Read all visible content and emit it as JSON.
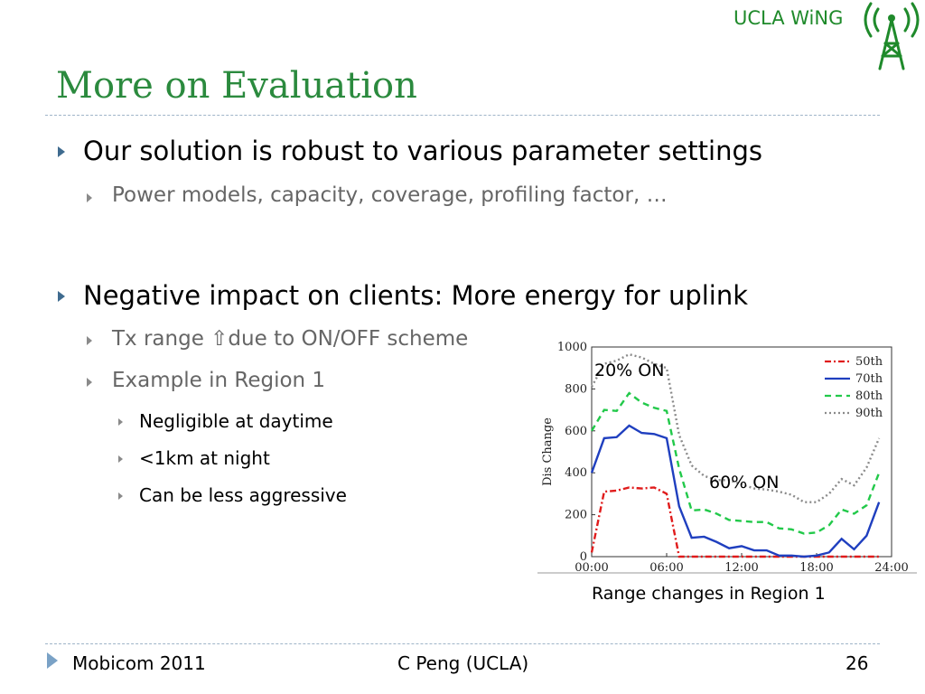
{
  "header": {
    "brand": "UCLA WiNG",
    "title": "More on Evaluation"
  },
  "bullets": {
    "b1": "Our solution is robust to various parameter settings",
    "b1_1": "Power models, capacity, coverage, profiling factor,  …",
    "b2": "Negative impact on clients:  More energy for uplink",
    "b2_1": "Tx range ⇧due to ON/OFF scheme",
    "b2_2": "Example in Region 1",
    "b2_2_1": "Negligible at daytime",
    "b2_2_2": "<1km at night",
    "b2_2_3": "Can be less aggressive"
  },
  "chart_data": {
    "type": "line",
    "title": "",
    "xlabel": "",
    "ylabel": "Dis Change",
    "xlim": [
      0,
      24
    ],
    "ylim": [
      0,
      1000
    ],
    "x_ticks": [
      "00:00",
      "06:00",
      "12:00",
      "18:00",
      "24:00"
    ],
    "y_ticks": [
      "0",
      "200",
      "400",
      "600",
      "800",
      "1000"
    ],
    "legend_position": "top-right",
    "annotations": [
      "20% ON",
      "60% ON"
    ],
    "x": [
      0,
      1,
      2,
      3,
      4,
      5,
      6,
      7,
      8,
      9,
      10,
      11,
      12,
      13,
      14,
      15,
      16,
      17,
      18,
      19,
      20,
      21,
      22,
      23
    ],
    "series": [
      {
        "name": "50th",
        "color": "#e01b1b",
        "dash": "7,3,2,3",
        "values": [
          20,
          310,
          315,
          330,
          325,
          330,
          300,
          0,
          0,
          0,
          0,
          0,
          0,
          0,
          0,
          0,
          0,
          0,
          0,
          0,
          0,
          0,
          0,
          0
        ]
      },
      {
        "name": "70th",
        "color": "#1f3fbf",
        "dash": "",
        "values": [
          400,
          565,
          570,
          625,
          590,
          585,
          565,
          240,
          90,
          95,
          70,
          40,
          50,
          30,
          30,
          5,
          5,
          0,
          5,
          20,
          85,
          35,
          100,
          260
        ]
      },
      {
        "name": "80th",
        "color": "#22c94a",
        "dash": "7,5",
        "values": [
          600,
          700,
          695,
          780,
          735,
          710,
          695,
          420,
          220,
          225,
          205,
          175,
          170,
          165,
          165,
          135,
          130,
          110,
          115,
          150,
          225,
          205,
          245,
          400
        ]
      },
      {
        "name": "90th",
        "color": "#8a8a8a",
        "dash": "2,3",
        "values": [
          810,
          920,
          935,
          965,
          950,
          920,
          900,
          580,
          435,
          385,
          365,
          365,
          345,
          325,
          320,
          310,
          295,
          260,
          260,
          300,
          370,
          340,
          425,
          565
        ]
      }
    ]
  },
  "caption": "Range changes in Region 1",
  "footer": {
    "left": "Mobicom 2011",
    "center": "C Peng (UCLA)",
    "page": "26"
  }
}
